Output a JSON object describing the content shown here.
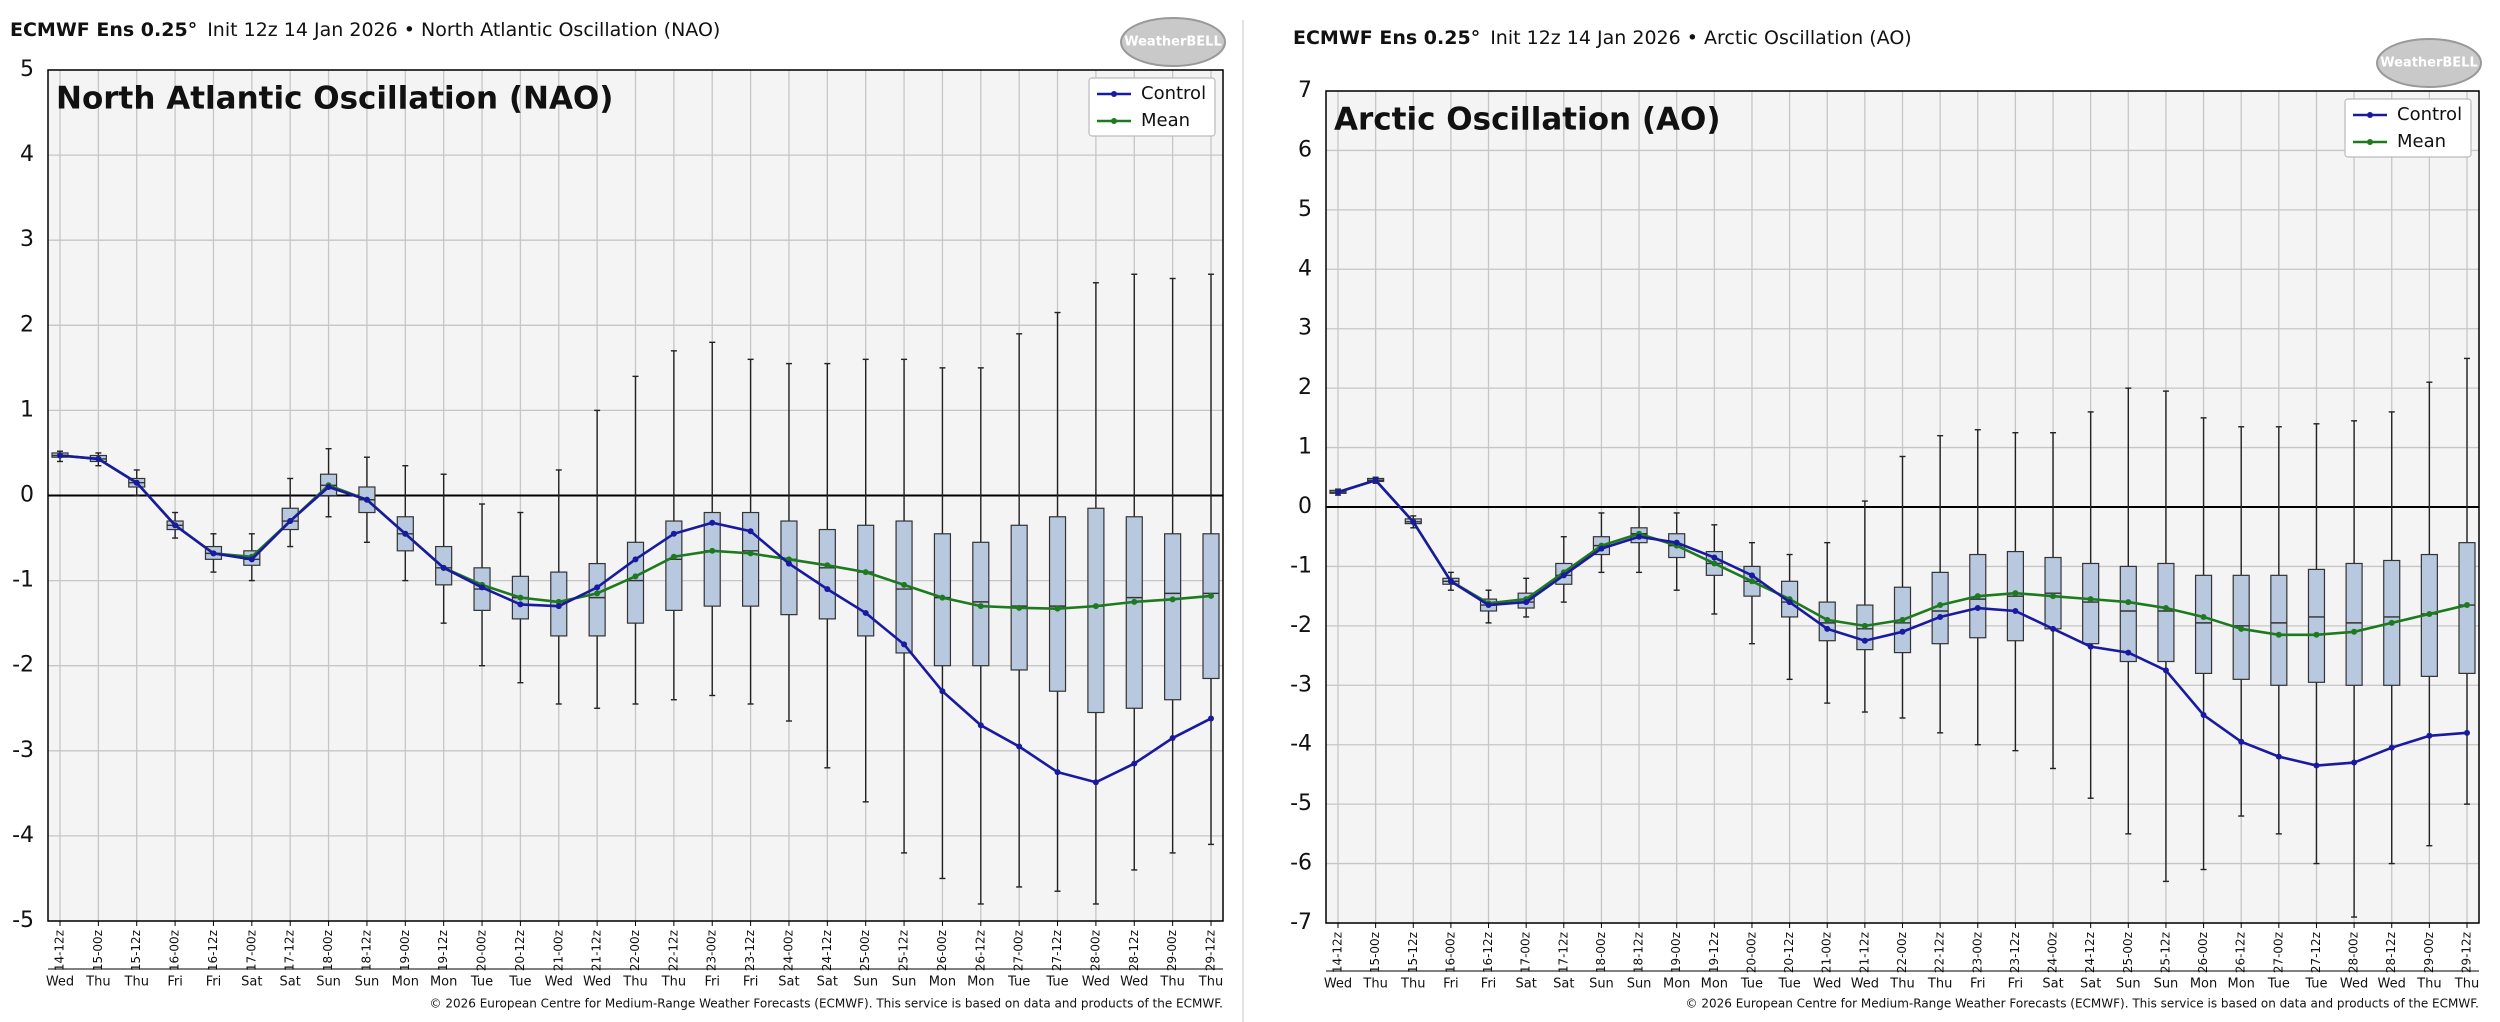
{
  "chart_data": [
    {
      "type": "box",
      "header_bold": "ECMWF Ens 0.25°",
      "header": "Init 12z 14 Jan 2026 • North Atlantic Oscillation (NAO)",
      "title": "North Atlantic Oscillation (NAO)",
      "logo": "WeatherBELL",
      "footer": "© 2026 European Centre for Medium-Range Weather Forecasts (ECMWF). This service is based on data and products of the ECMWF.",
      "categories": [
        "14-12z",
        "15-00z",
        "15-12z",
        "16-00z",
        "16-12z",
        "17-00z",
        "17-12z",
        "18-00z",
        "18-12z",
        "19-00z",
        "19-12z",
        "20-00z",
        "20-12z",
        "21-00z",
        "21-12z",
        "22-00z",
        "22-12z",
        "23-00z",
        "23-12z",
        "24-00z",
        "24-12z",
        "25-00z",
        "25-12z",
        "26-00z",
        "26-12z",
        "27-00z",
        "27-12z",
        "28-00z",
        "28-12z",
        "29-00z",
        "29-12z"
      ],
      "weekdays": [
        "Wed",
        "Thu",
        "Thu",
        "Fri",
        "Fri",
        "Sat",
        "Sat",
        "Sun",
        "Sun",
        "Mon",
        "Mon",
        "Tue",
        "Tue",
        "Wed",
        "Wed",
        "Thu",
        "Thu",
        "Fri",
        "Fri",
        "Sat",
        "Sat",
        "Sun",
        "Sun",
        "Mon",
        "Mon",
        "Tue",
        "Tue",
        "Wed",
        "Wed",
        "Thu",
        "Thu"
      ],
      "series": [
        {
          "name": "Control",
          "color": "#1a1aa0",
          "values": [
            0.47,
            0.43,
            0.15,
            -0.35,
            -0.68,
            -0.75,
            -0.3,
            0.1,
            -0.05,
            -0.45,
            -0.85,
            -1.08,
            -1.28,
            -1.3,
            -1.08,
            -0.75,
            -0.45,
            -0.32,
            -0.42,
            -0.8,
            -1.1,
            -1.38,
            -1.75,
            -2.3,
            -2.7,
            -2.95,
            -3.25,
            -3.37,
            -3.15,
            -2.85,
            -2.62
          ]
        },
        {
          "name": "Mean",
          "color": "#1e7a1e",
          "values": [
            0.47,
            0.43,
            0.15,
            -0.35,
            -0.68,
            -0.72,
            -0.3,
            0.12,
            -0.05,
            -0.45,
            -0.85,
            -1.05,
            -1.2,
            -1.25,
            -1.15,
            -0.95,
            -0.72,
            -0.65,
            -0.68,
            -0.75,
            -0.82,
            -0.9,
            -1.05,
            -1.2,
            -1.3,
            -1.32,
            -1.33,
            -1.3,
            -1.25,
            -1.22,
            -1.18
          ]
        }
      ],
      "boxes": {
        "min": [
          0.4,
          0.35,
          0.0,
          -0.5,
          -0.9,
          -1.0,
          -0.6,
          -0.25,
          -0.55,
          -1.0,
          -1.5,
          -2.0,
          -2.2,
          -2.45,
          -2.5,
          -2.45,
          -2.4,
          -2.35,
          -2.45,
          -2.65,
          -3.2,
          -3.6,
          -4.2,
          -4.5,
          -4.8,
          -4.6,
          -4.65,
          -4.8,
          -4.4,
          -4.2,
          -4.1
        ],
        "q1": [
          0.45,
          0.4,
          0.1,
          -0.4,
          -0.75,
          -0.82,
          -0.4,
          0.0,
          -0.2,
          -0.65,
          -1.05,
          -1.35,
          -1.45,
          -1.65,
          -1.65,
          -1.5,
          -1.35,
          -1.3,
          -1.3,
          -1.4,
          -1.45,
          -1.65,
          -1.85,
          -2.0,
          -2.0,
          -2.05,
          -2.3,
          -2.55,
          -2.5,
          -2.4,
          -2.15
        ],
        "median": [
          0.47,
          0.43,
          0.15,
          -0.35,
          -0.68,
          -0.75,
          -0.3,
          0.12,
          -0.05,
          -0.45,
          -0.85,
          -1.1,
          -1.2,
          -1.25,
          -1.2,
          -1.0,
          -0.75,
          -0.65,
          -0.65,
          -0.75,
          -0.85,
          -0.9,
          -1.1,
          -1.2,
          -1.25,
          -1.3,
          -1.3,
          -1.3,
          -1.2,
          -1.15,
          -1.15
        ],
        "q3": [
          0.5,
          0.47,
          0.2,
          -0.3,
          -0.6,
          -0.65,
          -0.15,
          0.25,
          0.1,
          -0.25,
          -0.6,
          -0.85,
          -0.95,
          -0.9,
          -0.8,
          -0.55,
          -0.3,
          -0.2,
          -0.2,
          -0.3,
          -0.4,
          -0.35,
          -0.3,
          -0.45,
          -0.55,
          -0.35,
          -0.25,
          -0.15,
          -0.25,
          -0.45,
          -0.45
        ],
        "max": [
          0.52,
          0.5,
          0.3,
          -0.2,
          -0.45,
          -0.45,
          0.2,
          0.55,
          0.45,
          0.35,
          0.25,
          -0.1,
          -0.2,
          0.3,
          1.0,
          1.4,
          1.7,
          1.8,
          1.6,
          1.55,
          1.55,
          1.6,
          1.6,
          1.5,
          1.5,
          1.9,
          2.15,
          2.5,
          2.6,
          2.55,
          2.6
        ]
      },
      "box_color": "#b8c9df",
      "ylim": [
        -5,
        5
      ],
      "yticks": [
        -5,
        -4,
        -3,
        -2,
        -1,
        0,
        1,
        2,
        3,
        4,
        5
      ],
      "grid": true,
      "legend": "upper right"
    },
    {
      "type": "box",
      "header_bold": "ECMWF Ens 0.25°",
      "header": "Init 12z 14 Jan 2026 • Arctic Oscillation (AO)",
      "title": "Arctic Oscillation (AO)",
      "logo": "WeatherBELL",
      "footer": "© 2026 European Centre for Medium-Range Weather Forecasts (ECMWF). This service is based on data and products of the ECMWF.",
      "categories": [
        "14-12z",
        "15-00z",
        "15-12z",
        "16-00z",
        "16-12z",
        "17-00z",
        "17-12z",
        "18-00z",
        "18-12z",
        "19-00z",
        "19-12z",
        "20-00z",
        "20-12z",
        "21-00z",
        "21-12z",
        "22-00z",
        "22-12z",
        "23-00z",
        "23-12z",
        "24-00z",
        "24-12z",
        "25-00z",
        "25-12z",
        "26-00z",
        "26-12z",
        "27-00z",
        "27-12z",
        "28-00z",
        "28-12z",
        "29-00z",
        "29-12z"
      ],
      "weekdays": [
        "Wed",
        "Thu",
        "Thu",
        "Fri",
        "Fri",
        "Sat",
        "Sat",
        "Sun",
        "Sun",
        "Mon",
        "Mon",
        "Tue",
        "Tue",
        "Wed",
        "Wed",
        "Thu",
        "Thu",
        "Fri",
        "Fri",
        "Sat",
        "Sat",
        "Sun",
        "Sun",
        "Mon",
        "Mon",
        "Tue",
        "Tue",
        "Wed",
        "Wed",
        "Thu",
        "Thu"
      ],
      "series": [
        {
          "name": "Control",
          "color": "#1a1aa0",
          "values": [
            0.25,
            0.45,
            -0.25,
            -1.25,
            -1.65,
            -1.6,
            -1.15,
            -0.7,
            -0.5,
            -0.6,
            -0.85,
            -1.15,
            -1.6,
            -2.05,
            -2.25,
            -2.1,
            -1.85,
            -1.7,
            -1.75,
            -2.05,
            -2.35,
            -2.45,
            -2.75,
            -3.5,
            -3.95,
            -4.2,
            -4.35,
            -4.3,
            -4.05,
            -3.85,
            -3.8
          ]
        },
        {
          "name": "Mean",
          "color": "#1e7a1e",
          "values": [
            0.25,
            0.45,
            -0.25,
            -1.25,
            -1.62,
            -1.55,
            -1.1,
            -0.65,
            -0.45,
            -0.65,
            -0.95,
            -1.25,
            -1.55,
            -1.9,
            -2.0,
            -1.9,
            -1.65,
            -1.5,
            -1.45,
            -1.5,
            -1.55,
            -1.6,
            -1.7,
            -1.85,
            -2.05,
            -2.15,
            -2.15,
            -2.1,
            -1.95,
            -1.8,
            -1.65
          ]
        }
      ],
      "boxes": {
        "min": [
          0.2,
          0.4,
          -0.35,
          -1.4,
          -1.95,
          -1.85,
          -1.6,
          -1.1,
          -1.1,
          -1.4,
          -1.8,
          -2.3,
          -2.9,
          -3.3,
          -3.45,
          -3.55,
          -3.8,
          -4.0,
          -4.1,
          -4.4,
          -4.9,
          -5.5,
          -6.3,
          -6.1,
          -5.2,
          -5.5,
          -6.0,
          -6.9,
          -6.0,
          -5.7,
          -5.0
        ],
        "q1": [
          0.23,
          0.43,
          -0.28,
          -1.3,
          -1.75,
          -1.7,
          -1.3,
          -0.8,
          -0.6,
          -0.85,
          -1.15,
          -1.5,
          -1.85,
          -2.25,
          -2.4,
          -2.45,
          -2.3,
          -2.2,
          -2.25,
          -2.05,
          -2.3,
          -2.6,
          -2.6,
          -2.8,
          -2.9,
          -3.0,
          -2.95,
          -3.0,
          -3.0,
          -2.85,
          -2.8
        ],
        "median": [
          0.25,
          0.45,
          -0.25,
          -1.25,
          -1.65,
          -1.6,
          -1.15,
          -0.65,
          -0.45,
          -0.65,
          -0.95,
          -1.25,
          -1.6,
          -1.95,
          -2.05,
          -1.95,
          -1.75,
          -1.55,
          -1.5,
          -1.45,
          -1.6,
          -1.75,
          -1.75,
          -1.95,
          -2.0,
          -1.95,
          -1.85,
          -1.95,
          -1.85,
          -1.8,
          -1.65
        ],
        "q3": [
          0.28,
          0.48,
          -0.2,
          -1.2,
          -1.55,
          -1.45,
          -0.95,
          -0.5,
          -0.35,
          -0.45,
          -0.75,
          -1.0,
          -1.25,
          -1.6,
          -1.65,
          -1.35,
          -1.1,
          -0.8,
          -0.75,
          -0.85,
          -0.95,
          -1.0,
          -0.95,
          -1.15,
          -1.15,
          -1.15,
          -1.05,
          -0.95,
          -0.9,
          -0.8,
          -0.6
        ],
        "max": [
          0.3,
          0.5,
          -0.15,
          -1.1,
          -1.4,
          -1.2,
          -0.5,
          -0.1,
          0.0,
          -0.1,
          -0.3,
          -0.6,
          -0.8,
          -0.6,
          0.1,
          0.85,
          1.2,
          1.3,
          1.25,
          1.25,
          1.6,
          2.0,
          1.95,
          1.5,
          1.35,
          1.35,
          1.4,
          1.45,
          1.6,
          2.1,
          2.5
        ]
      },
      "box_color": "#b8c9df",
      "ylim": [
        -7,
        7
      ],
      "yticks": [
        -7,
        -6,
        -5,
        -4,
        -3,
        -2,
        -1,
        0,
        1,
        2,
        3,
        4,
        5,
        6,
        7
      ],
      "grid": true,
      "legend": "upper right"
    }
  ]
}
